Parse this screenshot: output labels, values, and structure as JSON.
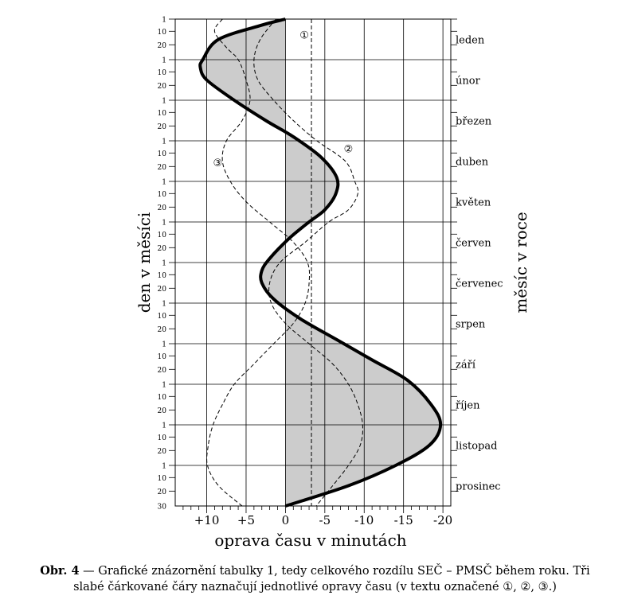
{
  "chart_data": {
    "type": "line",
    "xlabel": "oprava času v minutách",
    "ylabel_left": "den v měsíci",
    "ylabel_right": "měsíc v roce",
    "xlim": [
      14,
      -21
    ],
    "x_ticks": [
      10,
      5,
      0,
      -5,
      -10,
      -15,
      -20
    ],
    "x_tick_labels": [
      "+10",
      "+5",
      "0",
      "-5",
      "-10",
      "-15",
      "-20"
    ],
    "day_ticks": [
      "1",
      "10",
      "20"
    ],
    "last_day_label": "30",
    "months": [
      "leden",
      "únor",
      "březen",
      "duben",
      "květen",
      "červen",
      "červenec",
      "srpen",
      "září",
      "říjen",
      "listopad",
      "prosinec"
    ],
    "shaded_area": "between total curve and 0",
    "series": [
      {
        "name": "SEČ – PMSČ",
        "style": "thick solid",
        "x_unit": "month index (0 = 1. ledna, 12 = 31. prosince)",
        "points": [
          [
            0,
            0
          ],
          [
            0.15,
            3
          ],
          [
            0.5,
            8.5
          ],
          [
            1.0,
            10.5
          ],
          [
            1.2,
            10.8
          ],
          [
            1.5,
            10
          ],
          [
            2.0,
            6.5
          ],
          [
            2.5,
            2.5
          ],
          [
            2.9,
            -1
          ],
          [
            3.4,
            -4.5
          ],
          [
            3.9,
            -6.5
          ],
          [
            4.3,
            -6.4
          ],
          [
            4.7,
            -5
          ],
          [
            5.0,
            -3
          ],
          [
            5.4,
            -0.5
          ],
          [
            5.9,
            2
          ],
          [
            6.2,
            3
          ],
          [
            6.5,
            3
          ],
          [
            6.9,
            1.5
          ],
          [
            7.4,
            -2
          ],
          [
            7.9,
            -6.5
          ],
          [
            8.4,
            -11
          ],
          [
            8.9,
            -15.5
          ],
          [
            9.5,
            -18.5
          ],
          [
            10.0,
            -19.7
          ],
          [
            10.5,
            -18.3
          ],
          [
            11.0,
            -14
          ],
          [
            11.5,
            -8
          ],
          [
            12.0,
            0
          ]
        ]
      },
      {
        "name": "①",
        "style": "dashed",
        "points": [
          [
            0,
            -3.3
          ],
          [
            12,
            -3.3
          ]
        ]
      },
      {
        "name": "②",
        "style": "dashed",
        "points": [
          [
            0,
            1.2
          ],
          [
            0.5,
            3.2
          ],
          [
            1.0,
            4.0
          ],
          [
            1.5,
            3.5
          ],
          [
            2.0,
            1.5
          ],
          [
            2.5,
            -1
          ],
          [
            3.0,
            -4
          ],
          [
            3.5,
            -7.6
          ],
          [
            4.0,
            -8.8
          ],
          [
            4.3,
            -9.2
          ],
          [
            4.7,
            -8
          ],
          [
            5.0,
            -5.5
          ],
          [
            5.5,
            -2.5
          ],
          [
            6.0,
            0.7
          ],
          [
            6.5,
            2
          ],
          [
            7.0,
            1.8
          ],
          [
            7.5,
            0
          ],
          [
            8.0,
            -3
          ],
          [
            8.5,
            -6
          ],
          [
            9.0,
            -8
          ],
          [
            9.5,
            -9.2
          ],
          [
            10.0,
            -9.8
          ],
          [
            10.5,
            -9.5
          ],
          [
            11.0,
            -8
          ],
          [
            11.5,
            -6
          ],
          [
            12.0,
            -3.9
          ]
        ]
      },
      {
        "name": "③",
        "style": "dashed",
        "points": [
          [
            0,
            8
          ],
          [
            0.3,
            9
          ],
          [
            0.7,
            7.5
          ],
          [
            1.0,
            6
          ],
          [
            1.5,
            5
          ],
          [
            2.0,
            4.5
          ],
          [
            2.5,
            5.5
          ],
          [
            3.0,
            7.5
          ],
          [
            3.5,
            8
          ],
          [
            4.0,
            7
          ],
          [
            4.5,
            5
          ],
          [
            5.0,
            2
          ],
          [
            5.5,
            -1
          ],
          [
            6.0,
            -2.8
          ],
          [
            6.5,
            -3
          ],
          [
            7.0,
            -2.5
          ],
          [
            7.5,
            -1
          ],
          [
            8.0,
            1.5
          ],
          [
            8.5,
            4
          ],
          [
            9.0,
            6.5
          ],
          [
            9.5,
            8
          ],
          [
            10.0,
            9.2
          ],
          [
            10.5,
            9.8
          ],
          [
            11.0,
            9.9
          ],
          [
            11.5,
            8.5
          ],
          [
            12.0,
            5.5
          ]
        ]
      }
    ],
    "annotations": [
      "①",
      "②",
      "③"
    ]
  },
  "caption": {
    "label": "Obr. 4",
    "text": " — Grafické znázornění tabulky 1, tedy celkového rozdílu SEČ – PMSČ během roku. Tři",
    "line2": "slabé čárkované čáry naznačují jednotlivé opravy času (v textu označené ①, ②, ③.)"
  }
}
